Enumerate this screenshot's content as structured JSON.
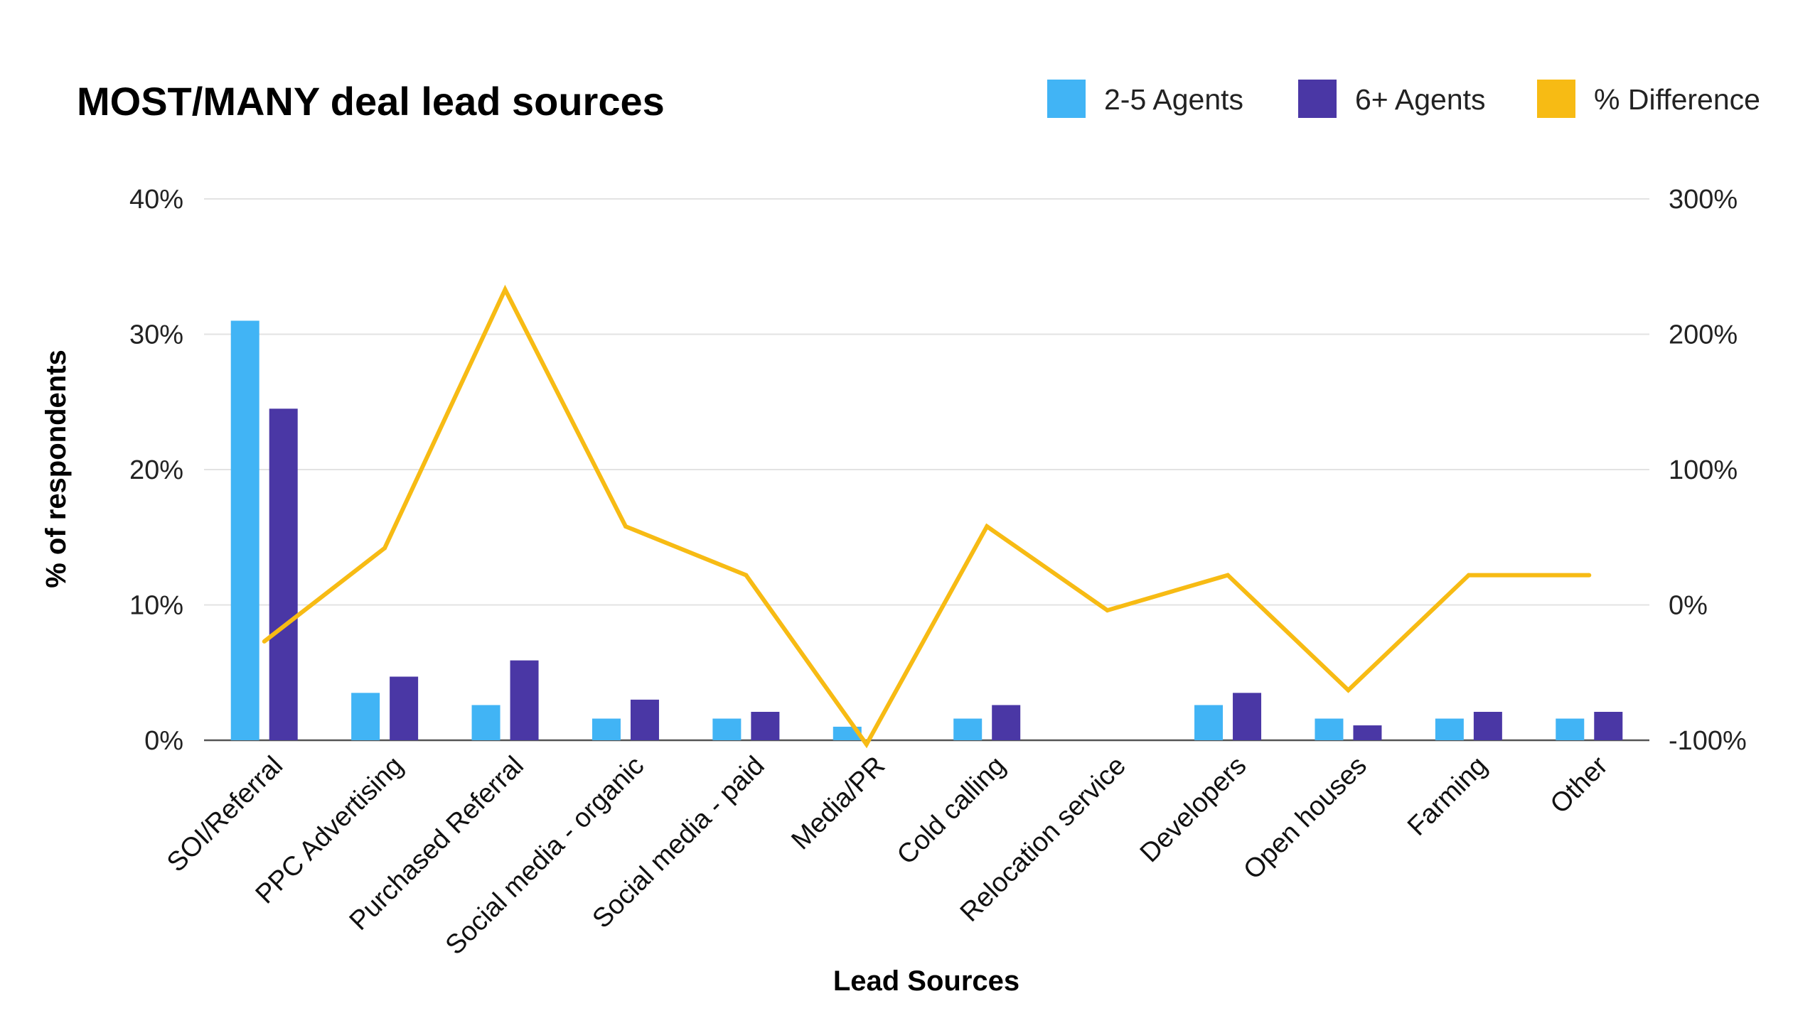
{
  "chart_data": {
    "type": "bar",
    "title": "MOST/MANY deal lead sources",
    "xlabel": "Lead Sources",
    "ylabel": "% of respondents",
    "ylim": [
      0,
      40
    ],
    "y2lim": [
      -100,
      300
    ],
    "yticks": [
      "0%",
      "10%",
      "20%",
      "30%",
      "40%"
    ],
    "y2ticks": [
      "-100%",
      "0%",
      "100%",
      "200%",
      "300%"
    ],
    "grid": true,
    "legend_position": "top-right",
    "categories": [
      "SOI/Referral",
      "PPC Advertising",
      "Purchased Referral",
      "Social media - organic",
      "Social media - paid",
      "Media/PR",
      "Cold calling",
      "Relocation service",
      "Developers",
      "Open houses",
      "Farming",
      "Other"
    ],
    "series": [
      {
        "name": "2-5 Agents",
        "type": "bar",
        "axis": "left",
        "color": "#41b4f5",
        "values": [
          31,
          3.5,
          2.6,
          1.6,
          1.6,
          1.0,
          1.6,
          0,
          2.6,
          1.6,
          1.6,
          1.6
        ]
      },
      {
        "name": "6+ Agents",
        "type": "bar",
        "axis": "left",
        "color": "#4a37a5",
        "values": [
          24.5,
          4.7,
          5.9,
          3.0,
          2.1,
          0,
          2.6,
          0,
          3.5,
          1.1,
          2.1,
          2.1
        ]
      },
      {
        "name": "% Difference",
        "type": "line",
        "axis": "right",
        "color": "#f7bb14",
        "values": [
          -27,
          42,
          233,
          58,
          22,
          -103,
          58,
          -4,
          22,
          -63,
          22,
          22
        ]
      }
    ]
  }
}
